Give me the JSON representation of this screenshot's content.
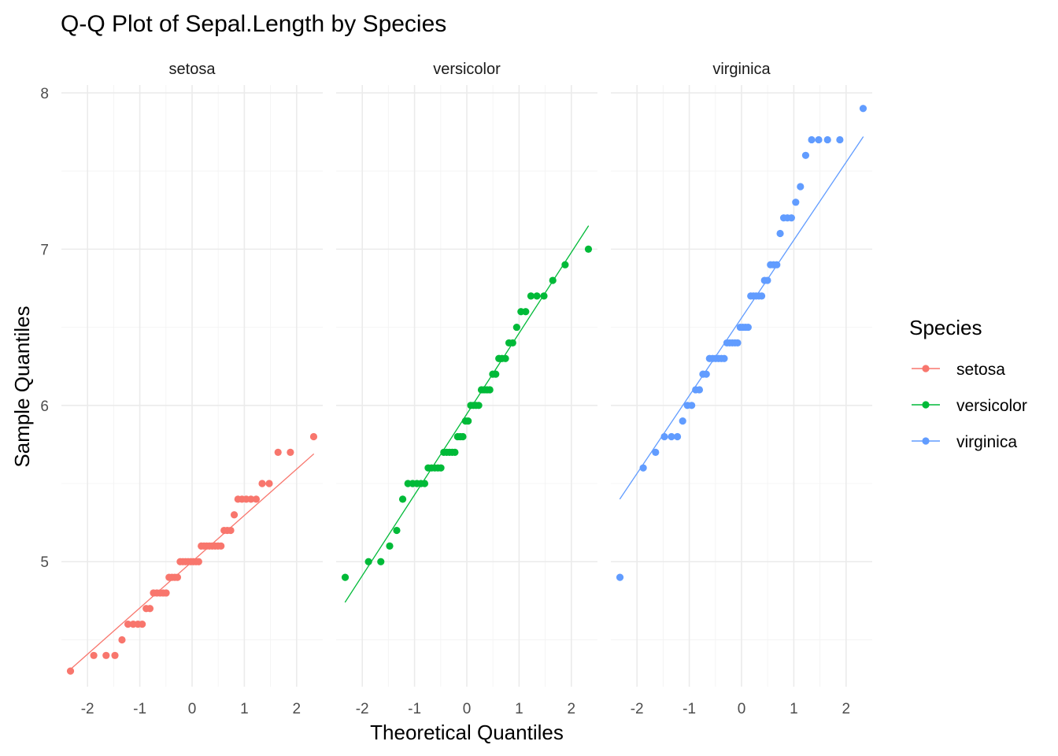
{
  "chart_data": {
    "type": "scatter",
    "title": "Q-Q Plot of Sepal.Length by Species",
    "xlabel": "Theoretical Quantiles",
    "ylabel": "Sample Quantiles",
    "xlim": [
      -2.5,
      2.5
    ],
    "ylim": [
      4.2,
      8.05
    ],
    "x_ticks": [
      -2,
      -1,
      0,
      1,
      2
    ],
    "x_tick_labels": [
      "-2",
      "-1",
      "0",
      "1",
      "2"
    ],
    "y_ticks": [
      5,
      6,
      7,
      8
    ],
    "y_tick_labels": [
      "5",
      "6",
      "7",
      "8"
    ],
    "grid": true,
    "legend": {
      "title": "Species",
      "position": "right"
    },
    "series": [
      {
        "name": "setosa",
        "color": "#F8766D",
        "panel_label": "setosa",
        "reference_line": {
          "x": [
            -2.33,
            2.33
          ],
          "y": [
            4.31,
            5.69
          ]
        },
        "values": [
          4.3,
          4.4,
          4.4,
          4.4,
          4.5,
          4.6,
          4.6,
          4.6,
          4.6,
          4.7,
          4.7,
          4.8,
          4.8,
          4.8,
          4.8,
          4.8,
          4.9,
          4.9,
          4.9,
          4.9,
          5.0,
          5.0,
          5.0,
          5.0,
          5.0,
          5.0,
          5.0,
          5.0,
          5.1,
          5.1,
          5.1,
          5.1,
          5.1,
          5.1,
          5.1,
          5.1,
          5.2,
          5.2,
          5.2,
          5.3,
          5.4,
          5.4,
          5.4,
          5.4,
          5.4,
          5.5,
          5.5,
          5.7,
          5.7,
          5.8
        ]
      },
      {
        "name": "versicolor",
        "color": "#00BA38",
        "panel_label": "versicolor",
        "reference_line": {
          "x": [
            -2.33,
            2.33
          ],
          "y": [
            4.74,
            7.15
          ]
        },
        "values": [
          4.9,
          5.0,
          5.0,
          5.1,
          5.2,
          5.4,
          5.5,
          5.5,
          5.5,
          5.5,
          5.5,
          5.6,
          5.6,
          5.6,
          5.6,
          5.6,
          5.7,
          5.7,
          5.7,
          5.7,
          5.7,
          5.8,
          5.8,
          5.8,
          5.9,
          5.9,
          6.0,
          6.0,
          6.0,
          6.0,
          6.1,
          6.1,
          6.1,
          6.1,
          6.2,
          6.2,
          6.3,
          6.3,
          6.3,
          6.4,
          6.4,
          6.5,
          6.6,
          6.6,
          6.7,
          6.7,
          6.7,
          6.8,
          6.9,
          7.0
        ]
      },
      {
        "name": "virginica",
        "color": "#619CFF",
        "panel_label": "virginica",
        "reference_line": {
          "x": [
            -2.33,
            2.33
          ],
          "y": [
            5.4,
            7.72
          ]
        },
        "values": [
          4.9,
          5.6,
          5.7,
          5.8,
          5.8,
          5.8,
          5.9,
          6.0,
          6.0,
          6.1,
          6.1,
          6.2,
          6.2,
          6.3,
          6.3,
          6.3,
          6.3,
          6.3,
          6.3,
          6.4,
          6.4,
          6.4,
          6.4,
          6.4,
          6.5,
          6.5,
          6.5,
          6.5,
          6.7,
          6.7,
          6.7,
          6.7,
          6.7,
          6.8,
          6.8,
          6.9,
          6.9,
          6.9,
          7.1,
          7.2,
          7.2,
          7.2,
          7.3,
          7.4,
          7.6,
          7.7,
          7.7,
          7.7,
          7.7,
          7.9
        ]
      }
    ]
  }
}
